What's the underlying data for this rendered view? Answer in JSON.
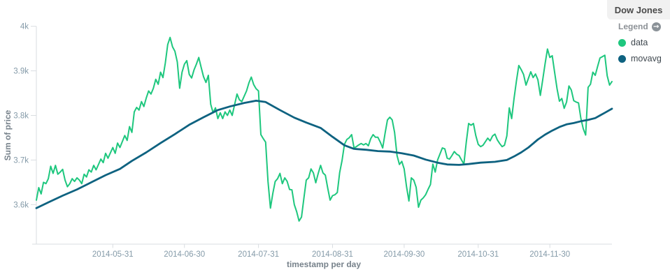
{
  "panel": {
    "title": "Dow Jones"
  },
  "legend": {
    "label": "Legend",
    "toggle_icon": "circle-arrow-right-icon",
    "items": [
      {
        "label": "data",
        "color": "#1ec77e"
      },
      {
        "label": "movavg",
        "color": "#0e6280"
      }
    ]
  },
  "colors": {
    "axis_line": "#d9dde1",
    "tick_text": "#849aa8",
    "axis_title_text": "#77828b",
    "background": "#ffffff"
  },
  "chart_data": {
    "type": "line",
    "title": "Dow Jones",
    "xlabel": "timestamp per day",
    "ylabel": "Sum of price",
    "grid": false,
    "legend_position": "top-right",
    "x_unit": "days since 2014-04-29 (daily buckets)",
    "x_range": [
      0,
      241
    ],
    "ylim": [
      3510,
      4000
    ],
    "y_ticks": [
      {
        "value": 4000,
        "label": "4k"
      },
      {
        "value": 3900,
        "label": "3.9k"
      },
      {
        "value": 3800,
        "label": "3.8k"
      },
      {
        "value": 3700,
        "label": "3.7k"
      },
      {
        "value": 3600,
        "label": "3.6k"
      }
    ],
    "x_ticks": [
      {
        "day": 32,
        "label": "2014-05-31"
      },
      {
        "day": 62,
        "label": "2014-06-30"
      },
      {
        "day": 93,
        "label": "2014-07-31"
      },
      {
        "day": 124,
        "label": "2014-08-31"
      },
      {
        "day": 154,
        "label": "2014-09-30"
      },
      {
        "day": 185,
        "label": "2014-10-31"
      },
      {
        "day": 215,
        "label": "2014-11-30"
      }
    ],
    "series": [
      {
        "name": "data",
        "color": "#1ec77e",
        "width": 2,
        "points": [
          [
            0,
            3610
          ],
          [
            1,
            3638
          ],
          [
            2,
            3624
          ],
          [
            3,
            3650
          ],
          [
            4,
            3647
          ],
          [
            5,
            3658
          ],
          [
            6,
            3686
          ],
          [
            7,
            3670
          ],
          [
            8,
            3688
          ],
          [
            9,
            3668
          ],
          [
            10,
            3673
          ],
          [
            11,
            3679
          ],
          [
            12,
            3655
          ],
          [
            13,
            3640
          ],
          [
            14,
            3647
          ],
          [
            15,
            3658
          ],
          [
            16,
            3652
          ],
          [
            17,
            3660
          ],
          [
            18,
            3655
          ],
          [
            19,
            3647
          ],
          [
            20,
            3668
          ],
          [
            21,
            3662
          ],
          [
            22,
            3678
          ],
          [
            23,
            3673
          ],
          [
            24,
            3688
          ],
          [
            25,
            3678
          ],
          [
            27,
            3702
          ],
          [
            28,
            3694
          ],
          [
            29,
            3715
          ],
          [
            30,
            3704
          ],
          [
            32,
            3728
          ],
          [
            33,
            3715
          ],
          [
            34,
            3738
          ],
          [
            35,
            3728
          ],
          [
            37,
            3755
          ],
          [
            38,
            3744
          ],
          [
            39,
            3775
          ],
          [
            40,
            3762
          ],
          [
            41,
            3808
          ],
          [
            42,
            3818
          ],
          [
            43,
            3812
          ],
          [
            44,
            3831
          ],
          [
            45,
            3820
          ],
          [
            46,
            3839
          ],
          [
            47,
            3855
          ],
          [
            48,
            3848
          ],
          [
            49,
            3861
          ],
          [
            50,
            3881
          ],
          [
            51,
            3870
          ],
          [
            52,
            3897
          ],
          [
            53,
            3885
          ],
          [
            54,
            3918
          ],
          [
            55,
            3959
          ],
          [
            56,
            3975
          ],
          [
            57,
            3954
          ],
          [
            58,
            3944
          ],
          [
            59,
            3920
          ],
          [
            60,
            3861
          ],
          [
            61,
            3897
          ],
          [
            62,
            3915
          ],
          [
            63,
            3923
          ],
          [
            64,
            3892
          ],
          [
            65,
            3884
          ],
          [
            66,
            3902
          ],
          [
            67,
            3915
          ],
          [
            68,
            3930
          ],
          [
            69,
            3908
          ],
          [
            70,
            3887
          ],
          [
            71,
            3874
          ],
          [
            72,
            3890
          ],
          [
            73,
            3825
          ],
          [
            74,
            3806
          ],
          [
            75,
            3817
          ],
          [
            76,
            3793
          ],
          [
            77,
            3806
          ],
          [
            78,
            3793
          ],
          [
            79,
            3808
          ],
          [
            80,
            3800
          ],
          [
            81,
            3812
          ],
          [
            82,
            3800
          ],
          [
            83,
            3824
          ],
          [
            84,
            3848
          ],
          [
            85,
            3835
          ],
          [
            86,
            3831
          ],
          [
            88,
            3855
          ],
          [
            89,
            3873
          ],
          [
            90,
            3886
          ],
          [
            91,
            3869
          ],
          [
            92,
            3860
          ],
          [
            93,
            3855
          ],
          [
            94,
            3757
          ],
          [
            95,
            3748
          ],
          [
            96,
            3740
          ],
          [
            97,
            3652
          ],
          [
            98,
            3592
          ],
          [
            99,
            3625
          ],
          [
            100,
            3652
          ],
          [
            101,
            3658
          ],
          [
            102,
            3670
          ],
          [
            103,
            3647
          ],
          [
            104,
            3660
          ],
          [
            105,
            3652
          ],
          [
            106,
            3634
          ],
          [
            107,
            3633
          ],
          [
            108,
            3600
          ],
          [
            109,
            3584
          ],
          [
            110,
            3563
          ],
          [
            111,
            3572
          ],
          [
            112,
            3614
          ],
          [
            113,
            3655
          ],
          [
            114,
            3660
          ],
          [
            115,
            3680
          ],
          [
            116,
            3671
          ],
          [
            117,
            3649
          ],
          [
            118,
            3670
          ],
          [
            119,
            3688
          ],
          [
            120,
            3671
          ],
          [
            121,
            3666
          ],
          [
            122,
            3637
          ],
          [
            123,
            3610
          ],
          [
            124,
            3620
          ],
          [
            125,
            3622
          ],
          [
            126,
            3627
          ],
          [
            127,
            3672
          ],
          [
            128,
            3699
          ],
          [
            129,
            3735
          ],
          [
            130,
            3746
          ],
          [
            131,
            3750
          ],
          [
            132,
            3757
          ],
          [
            133,
            3727
          ],
          [
            134,
            3730
          ],
          [
            135,
            3734
          ],
          [
            136,
            3737
          ],
          [
            137,
            3734
          ],
          [
            138,
            3737
          ],
          [
            139,
            3732
          ],
          [
            140,
            3748
          ],
          [
            141,
            3757
          ],
          [
            142,
            3751
          ],
          [
            143,
            3751
          ],
          [
            144,
            3740
          ],
          [
            145,
            3727
          ],
          [
            146,
            3760
          ],
          [
            147,
            3790
          ],
          [
            148,
            3796
          ],
          [
            149,
            3790
          ],
          [
            150,
            3762
          ],
          [
            151,
            3710
          ],
          [
            152,
            3690
          ],
          [
            153,
            3697
          ],
          [
            154,
            3680
          ],
          [
            155,
            3640
          ],
          [
            156,
            3608
          ],
          [
            157,
            3660
          ],
          [
            158,
            3655
          ],
          [
            159,
            3639
          ],
          [
            160,
            3594
          ],
          [
            161,
            3610
          ],
          [
            162,
            3615
          ],
          [
            163,
            3622
          ],
          [
            164,
            3634
          ],
          [
            165,
            3645
          ],
          [
            166,
            3691
          ],
          [
            167,
            3673
          ],
          [
            168,
            3700
          ],
          [
            170,
            3727
          ],
          [
            171,
            3725
          ],
          [
            172,
            3704
          ],
          [
            173,
            3702
          ],
          [
            174,
            3710
          ],
          [
            175,
            3719
          ],
          [
            176,
            3713
          ],
          [
            177,
            3710
          ],
          [
            178,
            3700
          ],
          [
            179,
            3691
          ],
          [
            180,
            3740
          ],
          [
            181,
            3782
          ],
          [
            182,
            3778
          ],
          [
            183,
            3782
          ],
          [
            184,
            3755
          ],
          [
            185,
            3735
          ],
          [
            186,
            3730
          ],
          [
            187,
            3733
          ],
          [
            189,
            3749
          ],
          [
            190,
            3743
          ],
          [
            191,
            3754
          ],
          [
            192,
            3758
          ],
          [
            193,
            3745
          ],
          [
            194,
            3737
          ],
          [
            195,
            3730
          ],
          [
            196,
            3733
          ],
          [
            197,
            3754
          ],
          [
            198,
            3817
          ],
          [
            199,
            3793
          ],
          [
            200,
            3838
          ],
          [
            201,
            3877
          ],
          [
            202,
            3912
          ],
          [
            203,
            3903
          ],
          [
            204,
            3892
          ],
          [
            205,
            3868
          ],
          [
            206,
            3883
          ],
          [
            207,
            3898
          ],
          [
            208,
            3885
          ],
          [
            209,
            3893
          ],
          [
            210,
            3880
          ],
          [
            211,
            3845
          ],
          [
            212,
            3880
          ],
          [
            213,
            3916
          ],
          [
            214,
            3949
          ],
          [
            215,
            3930
          ],
          [
            216,
            3934
          ],
          [
            217,
            3897
          ],
          [
            218,
            3860
          ],
          [
            219,
            3832
          ],
          [
            220,
            3838
          ],
          [
            221,
            3816
          ],
          [
            222,
            3830
          ],
          [
            223,
            3866
          ],
          [
            224,
            3857
          ],
          [
            225,
            3833
          ],
          [
            226,
            3830
          ],
          [
            227,
            3828
          ],
          [
            228,
            3793
          ],
          [
            229,
            3770
          ],
          [
            230,
            3756
          ],
          [
            231,
            3863
          ],
          [
            232,
            3870
          ],
          [
            233,
            3897
          ],
          [
            234,
            3890
          ],
          [
            235,
            3910
          ],
          [
            236,
            3929
          ],
          [
            237,
            3932
          ],
          [
            238,
            3935
          ],
          [
            239,
            3889
          ],
          [
            240,
            3868
          ],
          [
            241,
            3876
          ]
        ]
      },
      {
        "name": "movavg",
        "color": "#0e6280",
        "width": 2.8,
        "points": [
          [
            0,
            3592
          ],
          [
            5,
            3605
          ],
          [
            11,
            3620
          ],
          [
            17,
            3634
          ],
          [
            23,
            3650
          ],
          [
            29,
            3666
          ],
          [
            35,
            3680
          ],
          [
            40,
            3698
          ],
          [
            46,
            3717
          ],
          [
            52,
            3738
          ],
          [
            58,
            3758
          ],
          [
            64,
            3779
          ],
          [
            70,
            3796
          ],
          [
            76,
            3812
          ],
          [
            81,
            3820
          ],
          [
            87,
            3828
          ],
          [
            92,
            3833
          ],
          [
            96,
            3830
          ],
          [
            102,
            3812
          ],
          [
            108,
            3795
          ],
          [
            113,
            3784
          ],
          [
            119,
            3772
          ],
          [
            124,
            3752
          ],
          [
            129,
            3733
          ],
          [
            133,
            3725
          ],
          [
            138,
            3723
          ],
          [
            143,
            3720
          ],
          [
            148,
            3719
          ],
          [
            153,
            3715
          ],
          [
            158,
            3710
          ],
          [
            163,
            3701
          ],
          [
            168,
            3694
          ],
          [
            172,
            3690
          ],
          [
            177,
            3689
          ],
          [
            181,
            3691
          ],
          [
            186,
            3694
          ],
          [
            192,
            3696
          ],
          [
            197,
            3700
          ],
          [
            200,
            3708
          ],
          [
            203,
            3717
          ],
          [
            206,
            3728
          ],
          [
            210,
            3746
          ],
          [
            213,
            3757
          ],
          [
            216,
            3766
          ],
          [
            219,
            3774
          ],
          [
            222,
            3780
          ],
          [
            225,
            3783
          ],
          [
            228,
            3787
          ],
          [
            231,
            3790
          ],
          [
            234,
            3794
          ],
          [
            236,
            3800
          ],
          [
            238,
            3806
          ],
          [
            240,
            3812
          ],
          [
            241,
            3815
          ]
        ]
      }
    ]
  }
}
